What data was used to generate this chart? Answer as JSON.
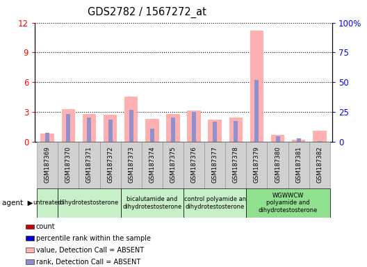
{
  "title": "GDS2782 / 1567272_at",
  "samples": [
    "GSM187369",
    "GSM187370",
    "GSM187371",
    "GSM187372",
    "GSM187373",
    "GSM187374",
    "GSM187375",
    "GSM187376",
    "GSM187377",
    "GSM187378",
    "GSM187379",
    "GSM187380",
    "GSM187381",
    "GSM187382"
  ],
  "pink_bars": [
    0.8,
    3.3,
    2.8,
    2.7,
    4.5,
    2.3,
    2.8,
    3.1,
    2.2,
    2.4,
    11.2,
    0.7,
    0.2,
    1.1
  ],
  "blue_bars": [
    0.9,
    2.8,
    2.4,
    2.2,
    3.2,
    1.3,
    2.4,
    3.0,
    2.0,
    2.1,
    6.2,
    0.5,
    0.3,
    0.05
  ],
  "ylim_left": [
    0,
    12
  ],
  "ylim_right": [
    0,
    100
  ],
  "yticks_left": [
    0,
    3,
    6,
    9,
    12
  ],
  "yticks_right": [
    0,
    25,
    50,
    75,
    100
  ],
  "pink_color": "#ffb0b0",
  "blue_color": "#9090cc",
  "red_color": "#cc0000",
  "blue_dark": "#0000cc",
  "sample_bg": "#d0d0d0",
  "agent_groups": [
    {
      "label": "untreated",
      "start": 0,
      "end": 1,
      "color": "#c8f0c8"
    },
    {
      "label": "dihydrotestosterone",
      "start": 1,
      "end": 4,
      "color": "#c8f0c8"
    },
    {
      "label": "bicalutamide and\ndihydrotestosterone",
      "start": 4,
      "end": 7,
      "color": "#c8f0c8"
    },
    {
      "label": "control polyamide an\ndihydrotestosterone",
      "start": 7,
      "end": 10,
      "color": "#c8f0c8"
    },
    {
      "label": "WGWWCW\npolyamide and\ndihydrotestosterone",
      "start": 10,
      "end": 14,
      "color": "#90e090"
    }
  ],
  "legend_items": [
    {
      "label": "count",
      "color": "#cc0000"
    },
    {
      "label": "percentile rank within the sample",
      "color": "#0000cc"
    },
    {
      "label": "value, Detection Call = ABSENT",
      "color": "#ffb0b0"
    },
    {
      "label": "rank, Detection Call = ABSENT",
      "color": "#9090cc"
    }
  ]
}
